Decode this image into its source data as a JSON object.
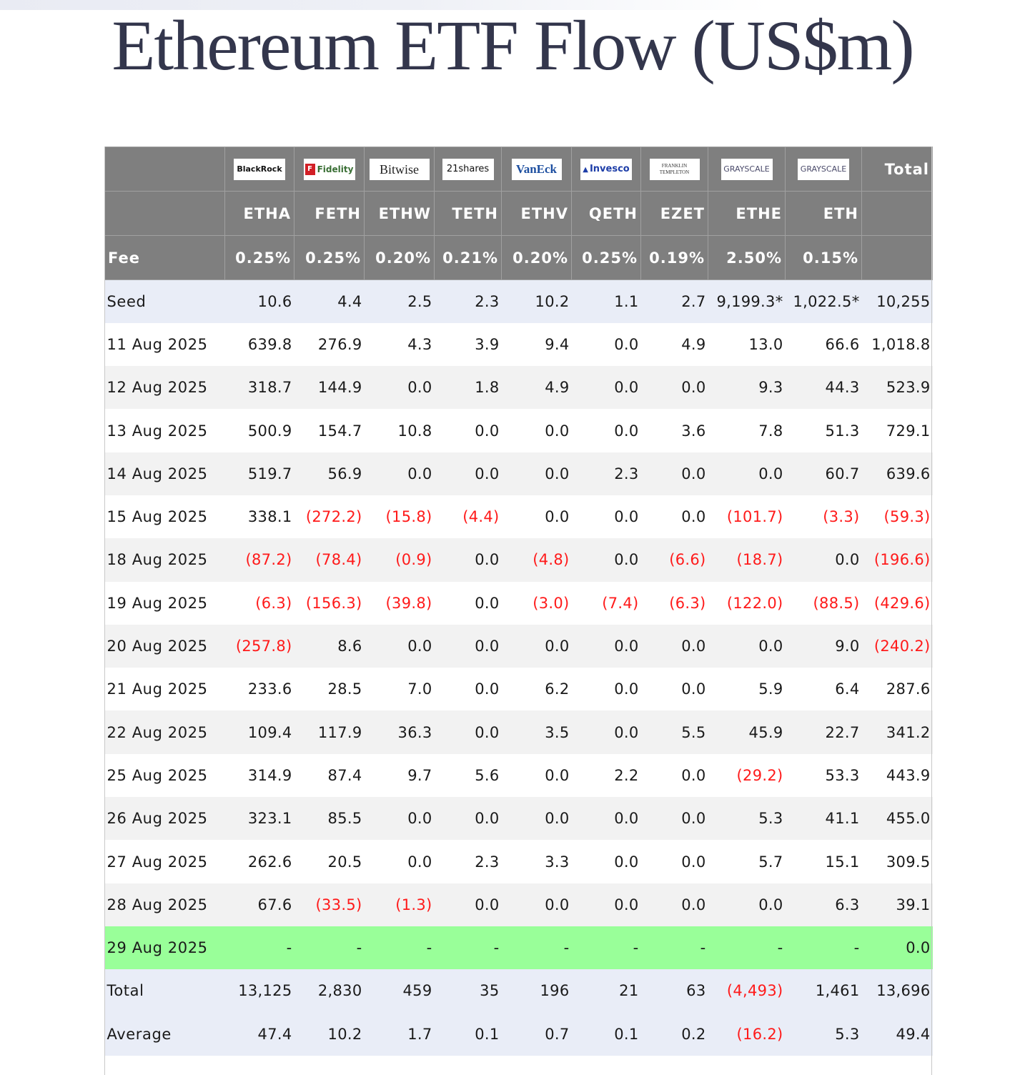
{
  "title": "Ethereum ETF Flow (US$m)",
  "colors": {
    "header_bg": "#7f7f7f",
    "negative": "#ff1a1a",
    "highlight_row": "#99ff99",
    "summary_row": "#e9edf7"
  },
  "issuers": [
    {
      "logo": "BlackRock",
      "ticker": "ETHA",
      "fee": "0.25%"
    },
    {
      "logo": "Fidelity",
      "ticker": "FETH",
      "fee": "0.25%"
    },
    {
      "logo": "Bitwise",
      "ticker": "ETHW",
      "fee": "0.20%"
    },
    {
      "logo": "21shares",
      "ticker": "TETH",
      "fee": "0.21%"
    },
    {
      "logo": "VanEck",
      "ticker": "ETHV",
      "fee": "0.20%"
    },
    {
      "logo": "Invesco",
      "ticker": "QETH",
      "fee": "0.25%"
    },
    {
      "logo": "FRANKLIN TEMPLETON",
      "ticker": "EZET",
      "fee": "0.19%"
    },
    {
      "logo": "GRAYSCALE",
      "ticker": "ETHE",
      "fee": "2.50%"
    },
    {
      "logo": "GRAYSCALE",
      "ticker": "ETH",
      "fee": "0.15%"
    }
  ],
  "header": {
    "total_label": "Total",
    "fee_label": "Fee"
  },
  "rows": [
    {
      "label": "Seed",
      "values": [
        "10.6",
        "4.4",
        "2.5",
        "2.3",
        "10.2",
        "1.1",
        "2.7",
        "9,199.3*",
        "1,022.5*",
        "10,255"
      ]
    },
    {
      "label": "11 Aug 2025",
      "values": [
        "639.8",
        "276.9",
        "4.3",
        "3.9",
        "9.4",
        "0.0",
        "4.9",
        "13.0",
        "66.6",
        "1,018.8"
      ]
    },
    {
      "label": "12 Aug 2025",
      "values": [
        "318.7",
        "144.9",
        "0.0",
        "1.8",
        "4.9",
        "0.0",
        "0.0",
        "9.3",
        "44.3",
        "523.9"
      ]
    },
    {
      "label": "13 Aug 2025",
      "values": [
        "500.9",
        "154.7",
        "10.8",
        "0.0",
        "0.0",
        "0.0",
        "3.6",
        "7.8",
        "51.3",
        "729.1"
      ]
    },
    {
      "label": "14 Aug 2025",
      "values": [
        "519.7",
        "56.9",
        "0.0",
        "0.0",
        "0.0",
        "2.3",
        "0.0",
        "0.0",
        "60.7",
        "639.6"
      ]
    },
    {
      "label": "15 Aug 2025",
      "values": [
        "338.1",
        "(272.2)",
        "(15.8)",
        "(4.4)",
        "0.0",
        "0.0",
        "0.0",
        "(101.7)",
        "(3.3)",
        "(59.3)"
      ]
    },
    {
      "label": "18 Aug 2025",
      "values": [
        "(87.2)",
        "(78.4)",
        "(0.9)",
        "0.0",
        "(4.8)",
        "0.0",
        "(6.6)",
        "(18.7)",
        "0.0",
        "(196.6)"
      ]
    },
    {
      "label": "19 Aug 2025",
      "values": [
        "(6.3)",
        "(156.3)",
        "(39.8)",
        "0.0",
        "(3.0)",
        "(7.4)",
        "(6.3)",
        "(122.0)",
        "(88.5)",
        "(429.6)"
      ]
    },
    {
      "label": "20 Aug 2025",
      "values": [
        "(257.8)",
        "8.6",
        "0.0",
        "0.0",
        "0.0",
        "0.0",
        "0.0",
        "0.0",
        "9.0",
        "(240.2)"
      ]
    },
    {
      "label": "21 Aug 2025",
      "values": [
        "233.6",
        "28.5",
        "7.0",
        "0.0",
        "6.2",
        "0.0",
        "0.0",
        "5.9",
        "6.4",
        "287.6"
      ]
    },
    {
      "label": "22 Aug 2025",
      "values": [
        "109.4",
        "117.9",
        "36.3",
        "0.0",
        "3.5",
        "0.0",
        "5.5",
        "45.9",
        "22.7",
        "341.2"
      ]
    },
    {
      "label": "25 Aug 2025",
      "values": [
        "314.9",
        "87.4",
        "9.7",
        "5.6",
        "0.0",
        "2.2",
        "0.0",
        "(29.2)",
        "53.3",
        "443.9"
      ]
    },
    {
      "label": "26 Aug 2025",
      "values": [
        "323.1",
        "85.5",
        "0.0",
        "0.0",
        "0.0",
        "0.0",
        "0.0",
        "5.3",
        "41.1",
        "455.0"
      ]
    },
    {
      "label": "27 Aug 2025",
      "values": [
        "262.6",
        "20.5",
        "0.0",
        "2.3",
        "3.3",
        "0.0",
        "0.0",
        "5.7",
        "15.1",
        "309.5"
      ]
    },
    {
      "label": "28 Aug 2025",
      "values": [
        "67.6",
        "(33.5)",
        "(1.3)",
        "0.0",
        "0.0",
        "0.0",
        "0.0",
        "0.0",
        "6.3",
        "39.1"
      ]
    },
    {
      "label": "29 Aug 2025",
      "values": [
        "-",
        "-",
        "-",
        "-",
        "-",
        "-",
        "-",
        "-",
        "-",
        "0.0"
      ],
      "highlight": true
    },
    {
      "label": "Total",
      "values": [
        "13,125",
        "2,830",
        "459",
        "35",
        "196",
        "21",
        "63",
        "(4,493)",
        "1,461",
        "13,696"
      ],
      "summary": true
    },
    {
      "label": "Average",
      "values": [
        "47.4",
        "10.2",
        "1.7",
        "0.1",
        "0.7",
        "0.1",
        "0.2",
        "(16.2)",
        "5.3",
        "49.4"
      ],
      "summary": true
    }
  ]
}
